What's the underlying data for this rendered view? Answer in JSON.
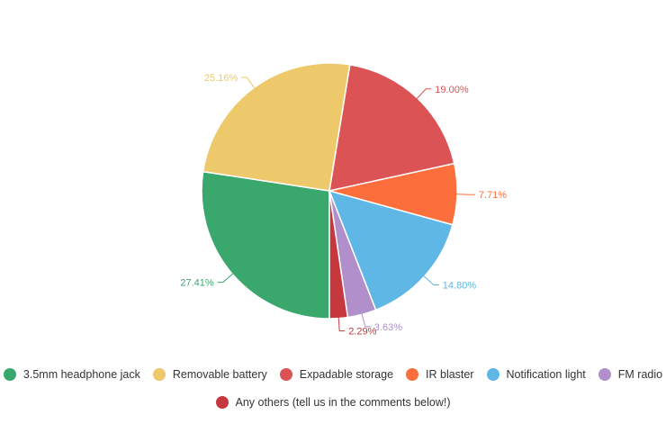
{
  "chart_data": {
    "type": "pie",
    "title": "",
    "legend_position": "bottom",
    "slices": [
      {
        "label": "3.5mm headphone jack",
        "value": 27.41,
        "display": "27.41%",
        "color": "#3aa76d"
      },
      {
        "label": "Removable battery",
        "value": 25.16,
        "display": "25.16%",
        "color": "#edc96b"
      },
      {
        "label": "Expadable storage",
        "value": 19.0,
        "display": "19.00%",
        "color": "#dc5356"
      },
      {
        "label": "IR blaster",
        "value": 7.71,
        "display": "7.71%",
        "color": "#fd6e3d"
      },
      {
        "label": "Notification light",
        "value": 14.8,
        "display": "14.80%",
        "color": "#5eb7e5"
      },
      {
        "label": "FM radio",
        "value": 3.63,
        "display": "3.63%",
        "color": "#b08fcb"
      },
      {
        "label": "Any others (tell us in the comments below!)",
        "value": 2.29,
        "display": "2.29%",
        "color": "#c5393e"
      }
    ]
  }
}
